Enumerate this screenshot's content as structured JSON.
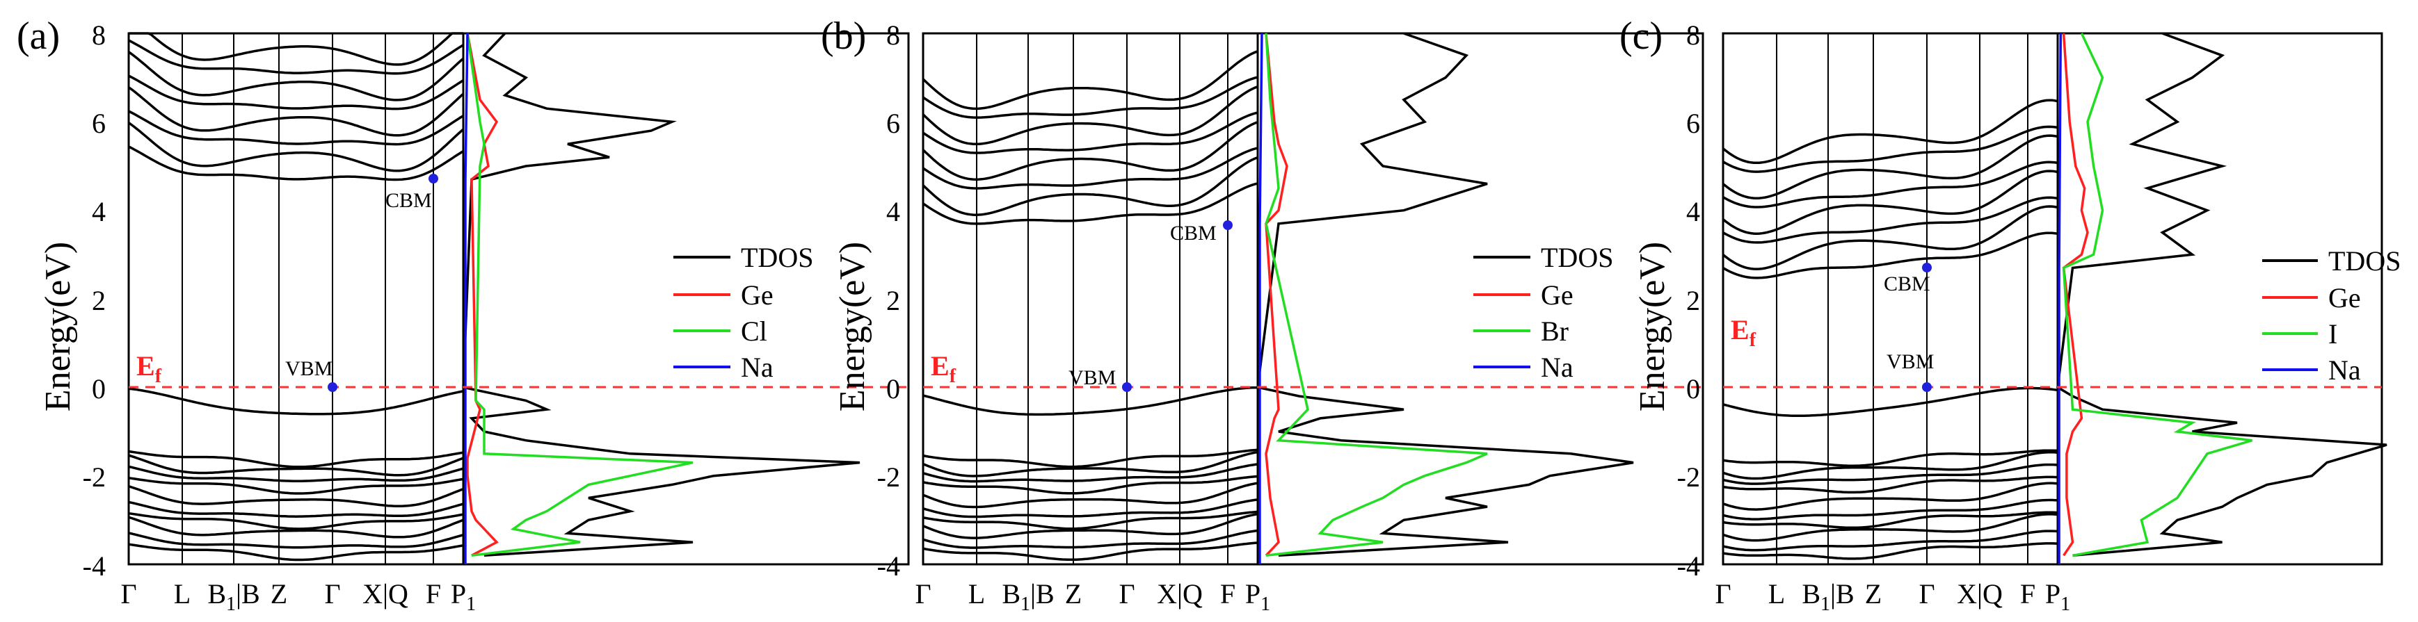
{
  "figure": {
    "panels": [
      {
        "label": "(a)",
        "ylabel": "Energy(eV)",
        "yticks": [
          "-4",
          "-2",
          "0",
          "2",
          "4",
          "6",
          "8"
        ],
        "kpoints": [
          "Γ",
          "L",
          "B1|B",
          "Z",
          "Γ",
          "X|Q",
          "F",
          "P1"
        ],
        "fermi_label": "Ef",
        "vbm_label": "VBM",
        "cbm_label": "CBM",
        "vbm": {
          "k": 4,
          "e": 0.0
        },
        "cbm": {
          "k": 6,
          "e": 4.75
        },
        "legend": [
          "TDOS",
          "Ge",
          "Cl",
          "Na"
        ]
      },
      {
        "label": "(b)",
        "ylabel": "Energy(eV)",
        "yticks": [
          "-4",
          "-2",
          "0",
          "2",
          "4",
          "6",
          "8"
        ],
        "kpoints": [
          "Γ",
          "L",
          "B1|B",
          "Z",
          "Γ",
          "X|Q",
          "F",
          "P1"
        ],
        "fermi_label": "Ef",
        "vbm_label": "VBM",
        "cbm_label": "CBM",
        "vbm": {
          "k": 4,
          "e": 0.0
        },
        "cbm": {
          "k": 6,
          "e": 3.8
        },
        "legend": [
          "TDOS",
          "Ge",
          "Br",
          "Na"
        ]
      },
      {
        "label": "(c)",
        "ylabel": "Energy(eV)",
        "yticks": [
          "-4",
          "-2",
          "0",
          "2",
          "4",
          "6",
          "8"
        ],
        "kpoints": [
          "Γ",
          "L",
          "B1|B",
          "Z",
          "Γ",
          "X|Q",
          "F",
          "P1"
        ],
        "fermi_label": "Ef",
        "vbm_label": "VBM",
        "cbm_label": "CBM",
        "vbm": {
          "k": 4,
          "e": 0.0
        },
        "cbm": {
          "k": 4,
          "e": 2.7
        },
        "legend": [
          "TDOS",
          "Ge",
          "I",
          "Na"
        ]
      }
    ]
  },
  "colors": {
    "tdos": "#000000",
    "ge": "#ff2020",
    "halogen": "#22dd22",
    "na": "#1010ee",
    "fermi": "#ff3030",
    "marker": "#2020dd"
  },
  "chart_data": [
    {
      "type": "line",
      "title": "",
      "panel": "(a)",
      "ylabel": "Energy(eV)",
      "ylim": [
        -4,
        8
      ],
      "kpath": [
        "Γ",
        "L",
        "B1|B",
        "Z",
        "Γ",
        "X|Q",
        "F",
        "P1"
      ],
      "series": [
        {
          "name": "TDOS",
          "energy": [
            -3.8,
            -3.5,
            -3.3,
            -3.0,
            -2.8,
            -2.5,
            -2.2,
            -2.0,
            -1.7,
            -1.5,
            -1.2,
            -1.0,
            -0.7,
            -0.5,
            -0.3,
            -0.1,
            0.0,
            4.7,
            5.0,
            5.2,
            5.5,
            5.8,
            6.0,
            6.3,
            6.6,
            7.0,
            7.5,
            8.0
          ],
          "dos": [
            0.05,
            0.55,
            0.25,
            0.3,
            0.4,
            0.3,
            0.5,
            0.6,
            0.95,
            0.4,
            0.15,
            0.05,
            0.02,
            0.2,
            0.15,
            0.05,
            0.0,
            0.02,
            0.15,
            0.35,
            0.25,
            0.45,
            0.5,
            0.2,
            0.1,
            0.15,
            0.05,
            0.1
          ]
        },
        {
          "name": "Ge",
          "energy": [
            -3.8,
            -3.5,
            -3.2,
            -3.0,
            -2.8,
            -2.0,
            -1.6,
            -0.5,
            -0.3,
            4.7,
            5.0,
            5.5,
            6.0,
            6.5,
            8.0
          ],
          "dos": [
            0.02,
            0.08,
            0.05,
            0.03,
            0.02,
            0.01,
            0.01,
            0.04,
            0.03,
            0.02,
            0.06,
            0.05,
            0.08,
            0.04,
            0.01
          ]
        },
        {
          "name": "Cl",
          "energy": [
            -3.8,
            -3.5,
            -3.2,
            -3.0,
            -2.8,
            -2.5,
            -2.2,
            -2.0,
            -1.7,
            -1.5,
            -0.5,
            -0.3,
            5.0,
            5.5,
            6.0,
            8.0
          ],
          "dos": [
            0.02,
            0.28,
            0.12,
            0.15,
            0.2,
            0.25,
            0.3,
            0.4,
            0.55,
            0.05,
            0.05,
            0.03,
            0.04,
            0.05,
            0.04,
            0.01
          ]
        },
        {
          "name": "Na",
          "energy": [
            -4.0,
            0.0,
            4.7,
            8.0
          ],
          "dos": [
            0.005,
            0.005,
            0.005,
            0.01
          ]
        }
      ]
    },
    {
      "type": "line",
      "title": "",
      "panel": "(b)",
      "ylabel": "Energy(eV)",
      "ylim": [
        -4,
        8
      ],
      "kpath": [
        "Γ",
        "L",
        "B1|B",
        "Z",
        "Γ",
        "X|Q",
        "F",
        "P1"
      ],
      "series": [
        {
          "name": "TDOS",
          "energy": [
            -3.8,
            -3.5,
            -3.3,
            -3.0,
            -2.7,
            -2.5,
            -2.2,
            -2.0,
            -1.7,
            -1.5,
            -1.2,
            -1.0,
            -0.7,
            -0.5,
            -0.2,
            0.0,
            3.7,
            4.0,
            4.3,
            4.6,
            5.0,
            5.5,
            6.0,
            6.5,
            7.0,
            7.5,
            8.0
          ],
          "dos": [
            0.05,
            0.6,
            0.3,
            0.35,
            0.55,
            0.45,
            0.65,
            0.7,
            0.9,
            0.75,
            0.2,
            0.05,
            0.15,
            0.35,
            0.1,
            0.0,
            0.05,
            0.35,
            0.45,
            0.55,
            0.3,
            0.25,
            0.4,
            0.35,
            0.45,
            0.5,
            0.35
          ]
        },
        {
          "name": "Ge",
          "energy": [
            -3.8,
            -3.5,
            -3.0,
            -2.5,
            -1.5,
            -0.7,
            -0.5,
            3.7,
            4.0,
            4.5,
            5.0,
            5.5,
            6.0,
            7.0,
            8.0
          ],
          "dos": [
            0.02,
            0.05,
            0.04,
            0.03,
            0.02,
            0.04,
            0.05,
            0.02,
            0.05,
            0.06,
            0.07,
            0.05,
            0.04,
            0.03,
            0.02
          ]
        },
        {
          "name": "Br",
          "energy": [
            -3.8,
            -3.5,
            -3.3,
            -3.0,
            -2.7,
            -2.5,
            -2.2,
            -2.0,
            -1.7,
            -1.5,
            -1.2,
            -0.7,
            -0.5,
            3.7,
            4.5,
            5.5,
            6.5,
            8.0
          ],
          "dos": [
            0.02,
            0.3,
            0.15,
            0.18,
            0.25,
            0.3,
            0.35,
            0.4,
            0.5,
            0.55,
            0.05,
            0.1,
            0.12,
            0.02,
            0.05,
            0.04,
            0.03,
            0.02
          ]
        },
        {
          "name": "Na",
          "energy": [
            -4.0,
            0.0,
            3.7,
            8.0
          ],
          "dos": [
            0.005,
            0.005,
            0.005,
            0.01
          ]
        }
      ]
    },
    {
      "type": "line",
      "title": "",
      "panel": "(c)",
      "ylabel": "Energy(eV)",
      "ylim": [
        -4,
        8
      ],
      "kpath": [
        "Γ",
        "L",
        "B1|B",
        "Z",
        "Γ",
        "X|Q",
        "F",
        "P1"
      ],
      "series": [
        {
          "name": "TDOS",
          "energy": [
            -3.8,
            -3.5,
            -3.3,
            -3.0,
            -2.7,
            -2.5,
            -2.2,
            -2.0,
            -1.7,
            -1.5,
            -1.3,
            -1.0,
            -0.8,
            -0.5,
            -0.2,
            0.0,
            2.7,
            3.0,
            3.5,
            4.0,
            4.5,
            5.0,
            5.5,
            6.0,
            6.5,
            7.0,
            7.5,
            8.0
          ],
          "dos": [
            0.05,
            0.55,
            0.35,
            0.4,
            0.55,
            0.6,
            0.7,
            0.85,
            0.9,
            1.0,
            1.1,
            0.45,
            0.6,
            0.15,
            0.05,
            0.0,
            0.05,
            0.45,
            0.35,
            0.5,
            0.3,
            0.55,
            0.25,
            0.4,
            0.3,
            0.45,
            0.55,
            0.35
          ]
        },
        {
          "name": "Ge",
          "energy": [
            -3.8,
            -3.5,
            -3.0,
            -2.5,
            -1.5,
            -1.0,
            -0.7,
            2.7,
            3.0,
            3.5,
            4.0,
            4.5,
            5.0,
            6.0,
            7.0,
            8.0
          ],
          "dos": [
            0.02,
            0.05,
            0.04,
            0.03,
            0.03,
            0.05,
            0.08,
            0.02,
            0.08,
            0.1,
            0.08,
            0.09,
            0.06,
            0.04,
            0.03,
            0.02
          ]
        },
        {
          "name": "I",
          "energy": [
            -3.8,
            -3.5,
            -3.0,
            -2.5,
            -2.0,
            -1.5,
            -1.2,
            -1.0,
            -0.8,
            -0.5,
            2.7,
            3.0,
            4.0,
            5.0,
            6.0,
            7.0,
            8.0
          ],
          "dos": [
            0.05,
            0.3,
            0.28,
            0.4,
            0.45,
            0.5,
            0.65,
            0.4,
            0.45,
            0.05,
            0.02,
            0.12,
            0.15,
            0.12,
            0.1,
            0.15,
            0.08
          ]
        },
        {
          "name": "Na",
          "energy": [
            -4.0,
            0.0,
            2.7,
            8.0
          ],
          "dos": [
            0.005,
            0.005,
            0.005,
            0.01
          ]
        }
      ]
    }
  ]
}
